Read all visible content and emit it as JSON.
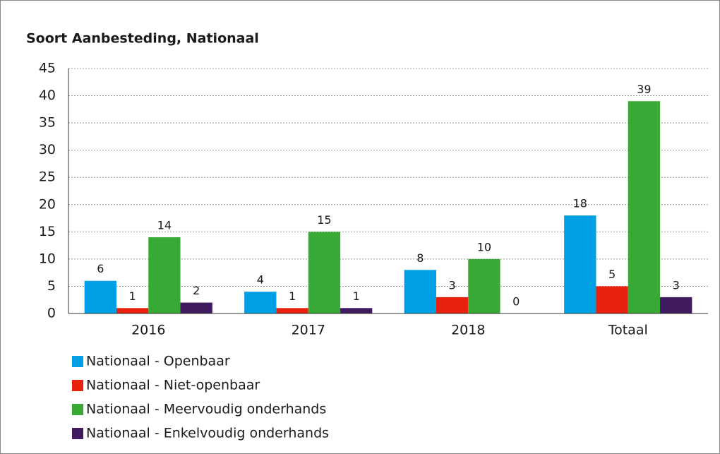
{
  "chart_data": {
    "type": "bar",
    "title": "Soort Aanbesteding, Nationaal",
    "categories": [
      "2016",
      "2017",
      "2018",
      "Totaal"
    ],
    "series": [
      {
        "name": "Nationaal - Openbaar",
        "color": "#009fe3",
        "values": [
          6,
          4,
          8,
          18
        ]
      },
      {
        "name": "Nationaal - Niet-openbaar",
        "color": "#e8210f",
        "values": [
          1,
          1,
          3,
          5
        ]
      },
      {
        "name": "Nationaal - Meervoudig onderhands",
        "color": "#39a935",
        "values": [
          14,
          15,
          10,
          39
        ]
      },
      {
        "name": "Nationaal - Enkelvoudig onderhands",
        "color": "#3f1a5e",
        "values": [
          2,
          1,
          0,
          3
        ]
      }
    ],
    "ylim": [
      0,
      45
    ],
    "yticks": [
      0,
      5,
      10,
      15,
      20,
      25,
      30,
      35,
      40,
      45
    ],
    "grid": true,
    "legend": "bottom-left"
  }
}
